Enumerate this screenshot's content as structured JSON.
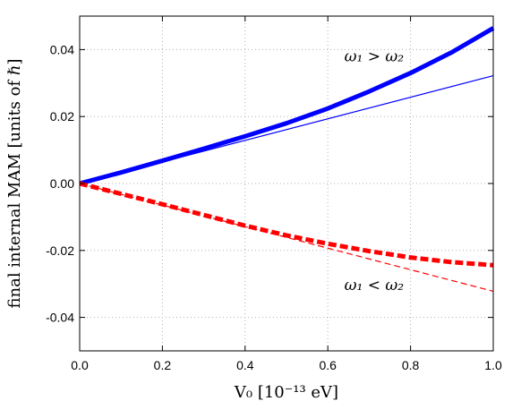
{
  "chart_data": {
    "type": "line",
    "xlabel": "V₀  [10⁻¹³ eV]",
    "ylabel": "final internal MAM  [units of ℏ]",
    "xlim": [
      0.0,
      1.0
    ],
    "ylim": [
      -0.05,
      0.05
    ],
    "x_ticks": [
      "0.0",
      "0.2",
      "0.4",
      "0.6",
      "0.8",
      "1.0"
    ],
    "y_ticks": [
      "-0.04",
      "-0.02",
      "0.00",
      "0.02",
      "0.04"
    ],
    "grid": true,
    "series": [
      {
        "color": "#0000ff",
        "style": "solid",
        "width": "thick",
        "x": [
          0.0,
          0.1,
          0.2,
          0.3,
          0.4,
          0.5,
          0.6,
          0.7,
          0.8,
          0.9,
          1.0
        ],
        "y": [
          0.0,
          0.0033,
          0.0068,
          0.0104,
          0.0141,
          0.018,
          0.0224,
          0.0275,
          0.033,
          0.0392,
          0.0464
        ]
      },
      {
        "color": "#0000ff",
        "style": "solid",
        "width": "thin",
        "x": [
          0.0,
          1.0
        ],
        "y": [
          0.0,
          0.0322
        ]
      },
      {
        "color": "#ff0000",
        "style": "dashed",
        "width": "thick",
        "x": [
          0.0,
          0.1,
          0.2,
          0.3,
          0.4,
          0.5,
          0.6,
          0.7,
          0.8,
          0.9,
          1.0
        ],
        "y": [
          0.0,
          -0.0031,
          -0.0062,
          -0.0094,
          -0.0126,
          -0.0155,
          -0.018,
          -0.0202,
          -0.0221,
          -0.0235,
          -0.0244
        ]
      },
      {
        "color": "#ff0000",
        "style": "dashed",
        "width": "thin",
        "x": [
          0.0,
          1.0
        ],
        "y": [
          0.0,
          -0.0322
        ]
      }
    ],
    "annotations": [
      {
        "text": "ω₁ > ω₂",
        "x": 0.64,
        "y": 0.0365
      },
      {
        "text": "ω₁ < ω₂",
        "x": 0.64,
        "y": -0.0318
      }
    ]
  }
}
